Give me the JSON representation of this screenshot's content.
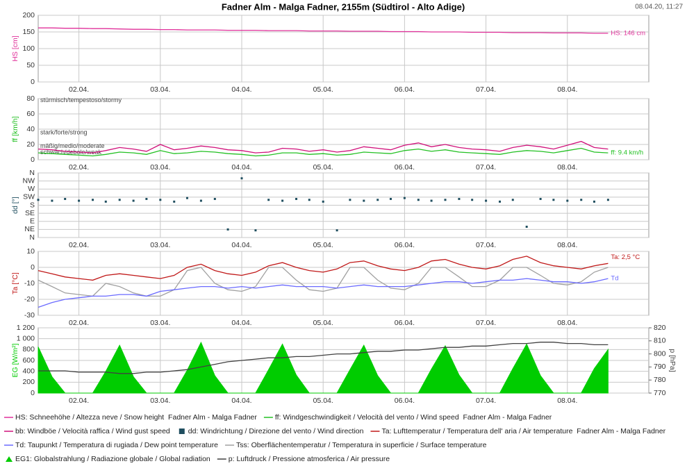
{
  "title": "Fadner Alm - Malga Fadner, 2155m (Südtirol - Alto Adige)",
  "timestamp": "08.04.20, 11:27",
  "chart_data": [
    {
      "type": "line",
      "ylabel": "HS [cm]",
      "xlim": [
        1.5,
        9.0
      ],
      "ylim": [
        0,
        200
      ],
      "yticks": [
        0,
        50,
        100,
        150,
        200
      ],
      "xticks": [
        {
          "value": 2,
          "label": "02.04."
        },
        {
          "value": 3,
          "label": "03.04."
        },
        {
          "value": 4,
          "label": "04.04."
        },
        {
          "value": 5,
          "label": "05.04."
        },
        {
          "value": 6,
          "label": "06.04."
        },
        {
          "value": 7,
          "label": "07.04."
        },
        {
          "value": 8,
          "label": "08.04."
        }
      ],
      "x": [
        1.5,
        1.67,
        1.83,
        2,
        2.17,
        2.33,
        2.5,
        2.67,
        2.83,
        3,
        3.17,
        3.33,
        3.5,
        3.67,
        3.83,
        4,
        4.17,
        4.33,
        4.5,
        4.67,
        4.83,
        5,
        5.17,
        5.33,
        5.5,
        5.67,
        5.83,
        6,
        6.17,
        6.33,
        6.5,
        6.67,
        6.83,
        7,
        7.17,
        7.33,
        7.5,
        7.67,
        7.83,
        8,
        8.17,
        8.33,
        8.5
      ],
      "series": [
        {
          "name": "HS: Schneehöhe / Altezza neve / Snow height  Fadner Alm - Malga Fadner",
          "color": "#e0309a",
          "end_label": "HS: 146 cm",
          "values": [
            162,
            162,
            161,
            161,
            160,
            160,
            159,
            158,
            158,
            157,
            157,
            156,
            156,
            156,
            155,
            155,
            155,
            154,
            154,
            154,
            153,
            153,
            153,
            152,
            152,
            152,
            151,
            151,
            151,
            150,
            150,
            150,
            149,
            149,
            149,
            148,
            148,
            148,
            147,
            147,
            147,
            146,
            146
          ]
        }
      ]
    },
    {
      "type": "line",
      "ylabel": "ff [km/h]",
      "xlim": [
        1.5,
        9.0
      ],
      "ylim": [
        0,
        80
      ],
      "yticks": [
        0,
        20,
        40,
        60,
        80
      ],
      "zone_labels": [
        "stürmisch/tempestoso/stormy",
        "stark/forte/strong",
        "mäßig/medio/moderate",
        "schwach/debole/weak"
      ],
      "xticks": [
        {
          "value": 2,
          "label": "02.04."
        },
        {
          "value": 3,
          "label": "03.04."
        },
        {
          "value": 4,
          "label": "04.04."
        },
        {
          "value": 5,
          "label": "05.04."
        },
        {
          "value": 6,
          "label": "06.04."
        },
        {
          "value": 7,
          "label": "07.04."
        },
        {
          "value": 8,
          "label": "08.04."
        }
      ],
      "x": [
        1.5,
        1.67,
        1.83,
        2,
        2.17,
        2.33,
        2.5,
        2.67,
        2.83,
        3,
        3.17,
        3.33,
        3.5,
        3.67,
        3.83,
        4,
        4.17,
        4.33,
        4.5,
        4.67,
        4.83,
        5,
        5.17,
        5.33,
        5.5,
        5.67,
        5.83,
        6,
        6.17,
        6.33,
        6.5,
        6.67,
        6.83,
        7,
        7.17,
        7.33,
        7.5,
        7.67,
        7.83,
        8,
        8.17,
        8.33,
        8.5
      ],
      "series": [
        {
          "name": "ff: Windgeschwindigkeit / Velocità del vento / Wind speed  Fadner Alm - Malga Fadner",
          "color": "#22c022",
          "end_label": "ff: 9.4 km/h",
          "values": [
            9,
            8,
            7,
            6,
            5,
            7,
            10,
            9,
            7,
            12,
            8,
            9,
            11,
            10,
            8,
            7,
            5,
            6,
            9,
            9,
            7,
            8,
            6,
            7,
            10,
            9,
            8,
            12,
            14,
            11,
            13,
            10,
            9,
            8,
            7,
            10,
            12,
            11,
            9,
            12,
            15,
            10,
            9
          ]
        },
        {
          "name": "bb: Windböe / Velocità raffica / Wind gust speed",
          "color": "#d0107a",
          "values": [
            14,
            13,
            11,
            10,
            9,
            12,
            16,
            14,
            11,
            20,
            13,
            15,
            18,
            16,
            13,
            12,
            9,
            10,
            15,
            14,
            11,
            13,
            10,
            12,
            17,
            15,
            13,
            19,
            22,
            17,
            20,
            16,
            14,
            13,
            11,
            16,
            19,
            17,
            14,
            19,
            24,
            16,
            14
          ]
        }
      ]
    },
    {
      "type": "scatter",
      "ylabel": "dd [°]",
      "xlim": [
        1.5,
        9.0
      ],
      "ylim": [
        0,
        360
      ],
      "yticks": [
        {
          "value": 0,
          "label": "N"
        },
        {
          "value": 45,
          "label": "NE"
        },
        {
          "value": 90,
          "label": "E"
        },
        {
          "value": 135,
          "label": "SE"
        },
        {
          "value": 180,
          "label": "S"
        },
        {
          "value": 225,
          "label": "SW"
        },
        {
          "value": 270,
          "label": "W"
        },
        {
          "value": 315,
          "label": "NW"
        },
        {
          "value": 360,
          "label": "N"
        }
      ],
      "xticks": [
        {
          "value": 2,
          "label": "02.04."
        },
        {
          "value": 3,
          "label": "03.04."
        },
        {
          "value": 4,
          "label": "04.04."
        },
        {
          "value": 5,
          "label": "05.04."
        },
        {
          "value": 6,
          "label": "06.04."
        },
        {
          "value": 7,
          "label": "07.04."
        },
        {
          "value": 8,
          "label": "08.04."
        }
      ],
      "x": [
        1.5,
        1.67,
        1.83,
        2,
        2.17,
        2.33,
        2.5,
        2.67,
        2.83,
        3,
        3.17,
        3.33,
        3.5,
        3.67,
        3.83,
        4,
        4.17,
        4.33,
        4.5,
        4.67,
        4.83,
        5,
        5.17,
        5.33,
        5.5,
        5.67,
        5.83,
        6,
        6.17,
        6.33,
        6.5,
        6.67,
        6.83,
        7,
        7.17,
        7.33,
        7.5,
        7.67,
        7.83,
        8,
        8.17,
        8.33,
        8.5
      ],
      "series": [
        {
          "name": "dd: Windrichtung / Direzione del vento / Wind direction",
          "color": "#1f4e5f",
          "values": [
            210,
            205,
            215,
            205,
            210,
            200,
            210,
            205,
            215,
            210,
            200,
            220,
            205,
            215,
            45,
            330,
            40,
            210,
            205,
            215,
            210,
            200,
            40,
            210,
            205,
            210,
            215,
            220,
            210,
            205,
            210,
            215,
            210,
            205,
            200,
            210,
            60,
            215,
            210,
            205,
            210,
            200,
            210
          ]
        }
      ]
    },
    {
      "type": "line",
      "ylabel": "Ta [°C]",
      "xlim": [
        1.5,
        9.0
      ],
      "ylim": [
        -30,
        10
      ],
      "yticks": [
        -30,
        -20,
        -10,
        0,
        10
      ],
      "xticks": [
        {
          "value": 2,
          "label": "02.04."
        },
        {
          "value": 3,
          "label": "03.04."
        },
        {
          "value": 4,
          "label": "04.04."
        },
        {
          "value": 5,
          "label": "05.04."
        },
        {
          "value": 6,
          "label": "06.04."
        },
        {
          "value": 7,
          "label": "07.04."
        },
        {
          "value": 8,
          "label": "08.04."
        }
      ],
      "x": [
        1.5,
        1.67,
        1.83,
        2,
        2.17,
        2.33,
        2.5,
        2.67,
        2.83,
        3,
        3.17,
        3.33,
        3.5,
        3.67,
        3.83,
        4,
        4.17,
        4.33,
        4.5,
        4.67,
        4.83,
        5,
        5.17,
        5.33,
        5.5,
        5.67,
        5.83,
        6,
        6.17,
        6.33,
        6.5,
        6.67,
        6.83,
        7,
        7.17,
        7.33,
        7.5,
        7.67,
        7.83,
        8,
        8.17,
        8.33,
        8.5
      ],
      "series": [
        {
          "name": "Ta: Lufttemperatur / Temperatura dell' aria / Air temperature  Fadner Alm - Malga Fadner",
          "color": "#c01818",
          "end_label": "Ta: 2,5 °C",
          "values": [
            -2,
            -4,
            -6,
            -7,
            -8,
            -5,
            -4,
            -5,
            -6,
            -7,
            -5,
            0,
            2,
            -2,
            -4,
            -5,
            -3,
            1,
            3,
            0,
            -2,
            -3,
            -1,
            3,
            4,
            1,
            -1,
            -2,
            0,
            4,
            5,
            2,
            0,
            -1,
            1,
            5,
            7,
            3,
            1,
            0,
            -1,
            1,
            2.5
          ]
        },
        {
          "name": "Td: Taupunkt / Temperatura di rugiada / Dew point temperature",
          "color": "#6a6aff",
          "end_label": "Td",
          "values": [
            -25,
            -22,
            -20,
            -19,
            -18,
            -18,
            -17,
            -17,
            -18,
            -15,
            -14,
            -13,
            -12,
            -12,
            -13,
            -12,
            -13,
            -12,
            -11,
            -12,
            -12,
            -12,
            -13,
            -12,
            -11,
            -12,
            -12,
            -12,
            -11,
            -10,
            -9,
            -9,
            -10,
            -9,
            -8,
            -8,
            -7,
            -8,
            -9,
            -9,
            -10,
            -9,
            -7
          ]
        },
        {
          "name": "Tss: Oberflächentemperatur / Temperatura in superficie / Surface temperature",
          "color": "#a0a0a0",
          "values": [
            -8,
            -12,
            -16,
            -17,
            -18,
            -10,
            -12,
            -16,
            -18,
            -18,
            -14,
            -2,
            0,
            -10,
            -14,
            -15,
            -12,
            0,
            0,
            -8,
            -14,
            -15,
            -13,
            0,
            0,
            -8,
            -13,
            -14,
            -10,
            0,
            0,
            -6,
            -12,
            -12,
            -8,
            0,
            0,
            -5,
            -10,
            -11,
            -9,
            -3,
            0
          ]
        }
      ]
    },
    {
      "type": "area",
      "ylabel": "EG [W/m²]",
      "y2label": "p [hPa]",
      "xlim": [
        1.5,
        9.0
      ],
      "ylim": [
        0,
        1200
      ],
      "yticks": [
        0,
        200,
        400,
        600,
        800,
        {
          "value": 1000,
          "label": "1 000"
        },
        {
          "value": 1200,
          "label": "1 200"
        }
      ],
      "y2lim": [
        770,
        820
      ],
      "y2ticks": [
        770,
        780,
        790,
        800,
        810,
        820
      ],
      "xticks": [
        {
          "value": 2,
          "label": "02.04."
        },
        {
          "value": 3,
          "label": "03.04."
        },
        {
          "value": 4,
          "label": "04.04."
        },
        {
          "value": 5,
          "label": "05.04."
        },
        {
          "value": 6,
          "label": "06.04."
        },
        {
          "value": 7,
          "label": "07.04."
        },
        {
          "value": 8,
          "label": "08.04."
        }
      ],
      "x": [
        1.5,
        1.67,
        1.83,
        2,
        2.17,
        2.33,
        2.5,
        2.67,
        2.83,
        3,
        3.17,
        3.33,
        3.5,
        3.67,
        3.83,
        4,
        4.17,
        4.33,
        4.5,
        4.67,
        4.83,
        5,
        5.17,
        5.33,
        5.5,
        5.67,
        5.83,
        6,
        6.17,
        6.33,
        6.5,
        6.67,
        6.83,
        7,
        7.17,
        7.33,
        7.5,
        7.67,
        7.83,
        8,
        8.17,
        8.33,
        8.5
      ],
      "series": [
        {
          "name": "EG1: Globalstrahlung / Radiazione globale / Global radiation",
          "color": "#00cc00",
          "values": [
            850,
            300,
            0,
            0,
            0,
            400,
            880,
            300,
            0,
            0,
            0,
            420,
            930,
            320,
            0,
            0,
            0,
            430,
            900,
            330,
            0,
            0,
            0,
            430,
            880,
            320,
            0,
            0,
            0,
            440,
            870,
            330,
            0,
            0,
            0,
            450,
            900,
            320,
            0,
            0,
            0,
            450,
            800
          ]
        },
        {
          "name": "p: Luftdruck / Pressione atmosferica / Air pressure",
          "color": "#404040",
          "type": "line",
          "axis": "y2",
          "values": [
            787,
            787,
            787,
            786,
            786,
            786,
            785,
            785,
            786,
            786,
            787,
            788,
            790,
            792,
            794,
            795,
            796,
            797,
            797,
            798,
            798,
            799,
            800,
            800,
            801,
            802,
            802,
            803,
            803,
            804,
            805,
            805,
            806,
            806,
            807,
            808,
            808,
            809,
            809,
            808,
            808,
            807,
            807
          ]
        }
      ]
    }
  ]
}
